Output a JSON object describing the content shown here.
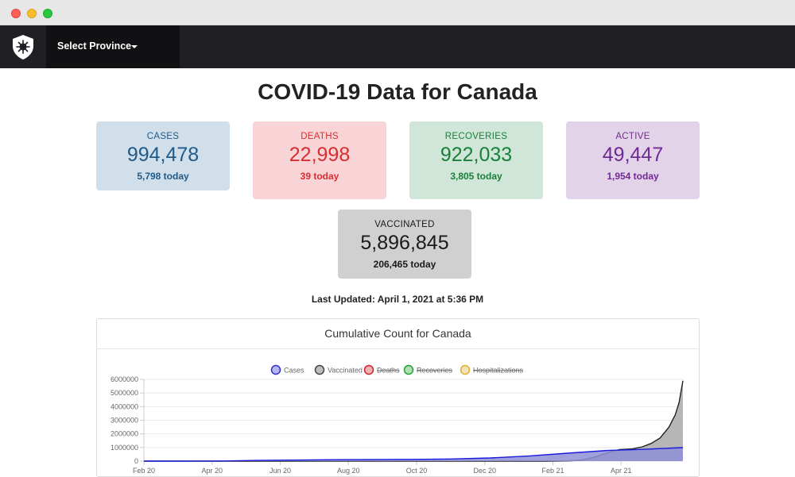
{
  "navbar": {
    "province_select_label": "Select Province"
  },
  "page": {
    "title": "COVID-19 Data for Canada",
    "last_updated": "Last Updated: April 1, 2021 at 5:36 PM"
  },
  "stats": {
    "cases": {
      "label": "CASES",
      "value": "994,478",
      "today": "5,798 today",
      "color": "#1f5a89"
    },
    "deaths": {
      "label": "DEATHS",
      "value": "22,998",
      "today": "39 today",
      "color": "#d92d2f"
    },
    "recoveries": {
      "label": "RECOVERIES",
      "value": "922,033",
      "today": "3,805 today",
      "color": "#19803a"
    },
    "active": {
      "label": "ACTIVE",
      "value": "49,447",
      "today": "1,954 today",
      "color": "#6f2a92"
    },
    "vaccinated": {
      "label": "VACCINATED",
      "value": "5,896,845",
      "today": "206,465 today",
      "color": "#1a1a1a"
    }
  },
  "chart_data": {
    "type": "area",
    "title": "Cumulative Count for Canada",
    "legend_position": "top",
    "legend": [
      {
        "name": "Cases",
        "color": "#3030d0",
        "hidden": false
      },
      {
        "name": "Vaccinated",
        "color": "#444444",
        "hidden": false
      },
      {
        "name": "Deaths",
        "color": "#d0202a",
        "hidden": true
      },
      {
        "name": "Recoveries",
        "color": "#20a030",
        "hidden": true
      },
      {
        "name": "Hospitalizations",
        "color": "#e0b030",
        "hidden": true
      }
    ],
    "x_tick_labels": [
      "Feb 20",
      "Apr 20",
      "Jun 20",
      "Aug 20",
      "Oct 20",
      "Dec 20",
      "Feb 21",
      "Apr 21"
    ],
    "ylim": [
      0,
      6000000
    ],
    "y_ticks": [
      0,
      1000000,
      2000000,
      3000000,
      4000000,
      5000000,
      6000000
    ],
    "series": [
      {
        "name": "Vaccinated",
        "color": "#222222",
        "fill": "#a9a9a9",
        "points": [
          [
            "2020-02-01",
            0
          ],
          [
            "2020-12-14",
            0
          ],
          [
            "2020-12-31",
            15000
          ],
          [
            "2021-01-10",
            60000
          ],
          [
            "2021-01-20",
            250000
          ],
          [
            "2021-01-31",
            600000
          ],
          [
            "2021-02-10",
            850000
          ],
          [
            "2021-02-20",
            900000
          ],
          [
            "2021-02-28",
            1050000
          ],
          [
            "2021-03-07",
            1300000
          ],
          [
            "2021-03-14",
            1700000
          ],
          [
            "2021-03-21",
            2500000
          ],
          [
            "2021-03-26",
            3400000
          ],
          [
            "2021-03-29",
            4300000
          ],
          [
            "2021-04-01",
            5896845
          ]
        ]
      },
      {
        "name": "Cases",
        "color": "#1a1adf",
        "fill": "#8f8fd6",
        "points": [
          [
            "2020-02-01",
            5
          ],
          [
            "2020-03-31",
            8000
          ],
          [
            "2020-04-30",
            55000
          ],
          [
            "2020-06-30",
            105000
          ],
          [
            "2020-08-31",
            130000
          ],
          [
            "2020-09-30",
            160000
          ],
          [
            "2020-10-31",
            235000
          ],
          [
            "2020-11-30",
            370000
          ],
          [
            "2020-12-31",
            580000
          ],
          [
            "2021-01-31",
            780000
          ],
          [
            "2021-02-28",
            865000
          ],
          [
            "2021-03-31",
            988000
          ],
          [
            "2021-04-01",
            994478
          ]
        ]
      }
    ]
  }
}
